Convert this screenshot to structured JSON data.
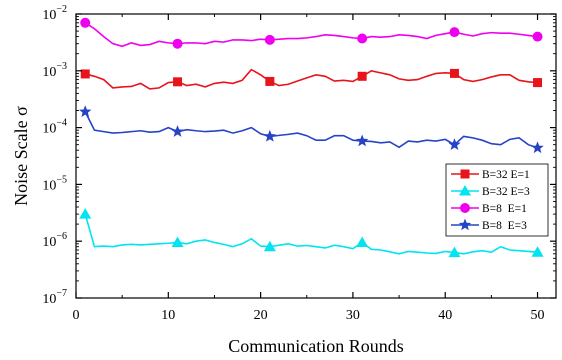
{
  "chart_data": {
    "type": "line",
    "title": "",
    "xlabel": "Communication Rounds",
    "ylabel": "Noise Scale σ",
    "xlim": [
      0,
      52
    ],
    "ylim": [
      1e-07,
      0.01
    ],
    "yscale": "log",
    "x_ticks": [
      0,
      10,
      20,
      30,
      40,
      50
    ],
    "y_ticks": [
      {
        "value": 1e-07,
        "base": "10",
        "exp": "−7"
      },
      {
        "value": 1e-06,
        "base": "10",
        "exp": "−6"
      },
      {
        "value": 1e-05,
        "base": "10",
        "exp": "−5"
      },
      {
        "value": 0.0001,
        "base": "10",
        "exp": "−4"
      },
      {
        "value": 0.001,
        "base": "10",
        "exp": "−3"
      },
      {
        "value": 0.01,
        "base": "10",
        "exp": "−2"
      }
    ],
    "grid": false,
    "legend_position": "right",
    "marker_every": 10,
    "series": [
      {
        "name": "B=32 E=1",
        "color": "#e8141c",
        "marker": "square",
        "values": [
          0.00088,
          0.0008,
          0.0007,
          0.0005,
          0.00052,
          0.00053,
          0.0006,
          0.00048,
          0.0005,
          0.00062,
          0.00064,
          0.00055,
          0.00058,
          0.00052,
          0.0006,
          0.00063,
          0.0006,
          0.00068,
          0.00105,
          0.00085,
          0.00065,
          0.00055,
          0.00058,
          0.00066,
          0.00075,
          0.00085,
          0.0008,
          0.00066,
          0.00068,
          0.00065,
          0.0008,
          0.001,
          0.00092,
          0.00085,
          0.00072,
          0.00068,
          0.0007,
          0.0008,
          0.0009,
          0.00092,
          0.0009,
          0.0007,
          0.00065,
          0.0007,
          0.00078,
          0.00085,
          0.00085,
          0.00068,
          0.00064,
          0.00062
        ]
      },
      {
        "name": "B=32 E=3",
        "color": "#00e5ef",
        "marker": "triangle",
        "values": [
          3e-06,
          8e-07,
          8.2e-07,
          8e-07,
          8.6e-07,
          8.8e-07,
          8.6e-07,
          8.8e-07,
          9e-07,
          9.2e-07,
          9.5e-07,
          9e-07,
          1e-06,
          1.05e-06,
          9.5e-07,
          8.8e-07,
          8e-07,
          9e-07,
          1.1e-06,
          8.2e-07,
          8e-07,
          8.5e-07,
          9e-07,
          8.2e-07,
          8.4e-07,
          8e-07,
          7.6e-07,
          8.5e-07,
          8e-07,
          7.4e-07,
          9.5e-07,
          7.2e-07,
          7e-07,
          6.5e-07,
          6e-07,
          6.6e-07,
          6.4e-07,
          6.2e-07,
          6.1e-07,
          6.6e-07,
          6.3e-07,
          6e-07,
          6.5e-07,
          6.8e-07,
          6.4e-07,
          8e-07,
          7e-07,
          6.8e-07,
          6.6e-07,
          6.4e-07
        ]
      },
      {
        "name": "B=8  E=1",
        "color": "#ef00ef",
        "marker": "circle",
        "values": [
          0.007,
          0.0055,
          0.004,
          0.003,
          0.0027,
          0.0031,
          0.0028,
          0.0029,
          0.0033,
          0.0031,
          0.003,
          0.0031,
          0.0031,
          0.003,
          0.0033,
          0.0032,
          0.0035,
          0.0035,
          0.0034,
          0.0036,
          0.0035,
          0.0036,
          0.0037,
          0.0037,
          0.0038,
          0.004,
          0.0043,
          0.0042,
          0.004,
          0.0038,
          0.0037,
          0.004,
          0.0039,
          0.004,
          0.0043,
          0.0042,
          0.004,
          0.0037,
          0.0042,
          0.0045,
          0.0048,
          0.0044,
          0.0041,
          0.0045,
          0.0047,
          0.0046,
          0.0046,
          0.0044,
          0.0042,
          0.004
        ]
      },
      {
        "name": "B=8  E=3",
        "color": "#2643c8",
        "marker": "star",
        "values": [
          0.00019,
          9e-05,
          8.5e-05,
          8e-05,
          8.2e-05,
          8.5e-05,
          8.8e-05,
          8.3e-05,
          8.5e-05,
          0.0001,
          8.5e-05,
          9.2e-05,
          8.8e-05,
          8.5e-05,
          8.7e-05,
          9e-05,
          8e-05,
          8.8e-05,
          0.0001,
          7.8e-05,
          7e-05,
          7.3e-05,
          7.6e-05,
          8e-05,
          7.2e-05,
          6e-05,
          6e-05,
          7.2e-05,
          7.2e-05,
          6e-05,
          5.8e-05,
          5.7e-05,
          5.4e-05,
          5.6e-05,
          4.5e-05,
          5.8e-05,
          5.6e-05,
          6e-05,
          5.8e-05,
          6.2e-05,
          5e-05,
          7e-05,
          6.6e-05,
          6e-05,
          5.2e-05,
          5e-05,
          6.2e-05,
          6.6e-05,
          5e-05,
          4.4e-05
        ]
      }
    ]
  }
}
